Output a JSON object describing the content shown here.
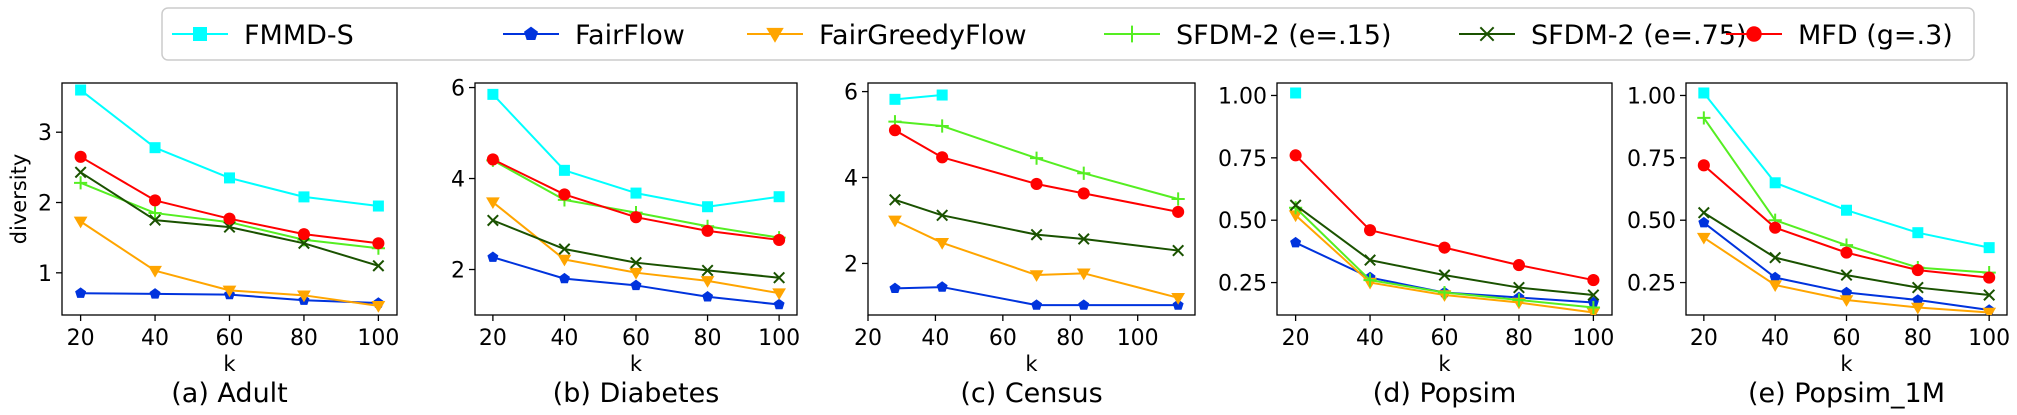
{
  "legend": {
    "placement": "top-center",
    "entries": [
      {
        "name": "FMMD-S",
        "color": "#00FFFF",
        "marker": "square"
      },
      {
        "name": "FairFlow",
        "color": "#0033DD",
        "marker": "pentagon"
      },
      {
        "name": "FairGreedyFlow",
        "color": "#FFA500",
        "marker": "triangle-down"
      },
      {
        "name": "SFDM-2 (e=.15)",
        "color": "#55EE22",
        "marker": "plus"
      },
      {
        "name": "SFDM-2 (e=.75)",
        "color": "#1A5200",
        "marker": "x"
      },
      {
        "name": "MFD (g=.3)",
        "color": "#FF0000",
        "marker": "circle"
      }
    ]
  },
  "chart_data": [
    {
      "type": "line",
      "caption": "(a) Adult",
      "xlabel": "k",
      "ylabel": "diversity",
      "xlim": [
        15,
        105
      ],
      "ylim": [
        0.4,
        3.7
      ],
      "xticks": [
        20,
        40,
        60,
        80,
        100
      ],
      "yticks": [
        1,
        2,
        3
      ],
      "grid": false,
      "series": [
        {
          "name": "FMMD-S",
          "x": [
            20,
            40,
            60,
            80,
            100
          ],
          "y": [
            3.6,
            2.78,
            2.35,
            2.08,
            1.95
          ]
        },
        {
          "name": "FairFlow",
          "x": [
            20,
            40,
            60,
            80,
            100
          ],
          "y": [
            0.71,
            0.7,
            0.69,
            0.61,
            0.57
          ]
        },
        {
          "name": "FairGreedyFlow",
          "x": [
            20,
            40,
            60,
            80,
            100
          ],
          "y": [
            1.73,
            1.03,
            0.75,
            0.68,
            0.53
          ]
        },
        {
          "name": "SFDM-2 (e=.15)",
          "x": [
            20,
            40,
            60,
            80,
            100
          ],
          "y": [
            2.28,
            1.85,
            1.72,
            1.47,
            1.35
          ]
        },
        {
          "name": "SFDM-2 (e=.75)",
          "x": [
            20,
            40,
            60,
            80,
            100
          ],
          "y": [
            2.43,
            1.75,
            1.65,
            1.42,
            1.1
          ]
        },
        {
          "name": "MFD (g=.3)",
          "x": [
            20,
            40,
            60,
            80,
            100
          ],
          "y": [
            2.65,
            2.03,
            1.77,
            1.55,
            1.42
          ]
        }
      ]
    },
    {
      "type": "line",
      "caption": "(b) Diabetes",
      "xlabel": "k",
      "ylabel": "",
      "xlim": [
        15,
        105
      ],
      "ylim": [
        1.0,
        6.1
      ],
      "xticks": [
        20,
        40,
        60,
        80,
        100
      ],
      "yticks": [
        2,
        4,
        6
      ],
      "grid": false,
      "series": [
        {
          "name": "FMMD-S",
          "x": [
            20,
            40,
            60,
            80,
            100
          ],
          "y": [
            5.85,
            4.18,
            3.68,
            3.38,
            3.6
          ]
        },
        {
          "name": "FairFlow",
          "x": [
            20,
            40,
            60,
            80,
            100
          ],
          "y": [
            2.27,
            1.8,
            1.65,
            1.4,
            1.23
          ]
        },
        {
          "name": "FairGreedyFlow",
          "x": [
            20,
            40,
            60,
            80,
            100
          ],
          "y": [
            3.48,
            2.22,
            1.93,
            1.75,
            1.48
          ]
        },
        {
          "name": "SFDM-2 (e=.15)",
          "x": [
            20,
            40,
            60,
            80,
            100
          ],
          "y": [
            4.4,
            3.53,
            3.25,
            2.95,
            2.7
          ]
        },
        {
          "name": "SFDM-2 (e=.75)",
          "x": [
            20,
            40,
            60,
            80,
            100
          ],
          "y": [
            3.08,
            2.45,
            2.15,
            1.98,
            1.82
          ]
        },
        {
          "name": "MFD (g=.3)",
          "x": [
            20,
            40,
            60,
            80,
            100
          ],
          "y": [
            4.42,
            3.65,
            3.15,
            2.85,
            2.65
          ]
        }
      ]
    },
    {
      "type": "line",
      "caption": "(c) Census",
      "xlabel": "k",
      "ylabel": "",
      "xlim": [
        20,
        117
      ],
      "ylim": [
        0.8,
        6.2
      ],
      "xticks": [
        20,
        40,
        60,
        80,
        100
      ],
      "yticks": [
        2,
        4,
        6
      ],
      "grid": false,
      "series": [
        {
          "name": "FMMD-S",
          "x": [
            28,
            42
          ],
          "y": [
            5.82,
            5.92
          ]
        },
        {
          "name": "FairFlow",
          "x": [
            28,
            42,
            70,
            84,
            112
          ],
          "y": [
            1.42,
            1.45,
            1.03,
            1.03,
            1.03
          ]
        },
        {
          "name": "FairGreedyFlow",
          "x": [
            28,
            42,
            70,
            84,
            112
          ],
          "y": [
            3.0,
            2.48,
            1.73,
            1.77,
            1.2
          ]
        },
        {
          "name": "SFDM-2 (e=.15)",
          "x": [
            28,
            42,
            70,
            84,
            112
          ],
          "y": [
            5.3,
            5.2,
            4.45,
            4.1,
            3.5
          ]
        },
        {
          "name": "SFDM-2 (e=.75)",
          "x": [
            28,
            42,
            70,
            84,
            112
          ],
          "y": [
            3.48,
            3.12,
            2.67,
            2.57,
            2.3
          ]
        },
        {
          "name": "MFD (g=.3)",
          "x": [
            28,
            42,
            70,
            84,
            112
          ],
          "y": [
            5.1,
            4.47,
            3.85,
            3.63,
            3.2
          ]
        }
      ]
    },
    {
      "type": "line",
      "caption": "(d) Popsim",
      "xlabel": "k",
      "ylabel": "",
      "xlim": [
        15,
        105
      ],
      "ylim": [
        0.12,
        1.05
      ],
      "xticks": [
        20,
        40,
        60,
        80,
        100
      ],
      "yticks": [
        0.25,
        0.5,
        0.75,
        1.0
      ],
      "ytick_labels": [
        "0.25",
        "0.50",
        "0.75",
        "1.00"
      ],
      "grid": false,
      "series": [
        {
          "name": "FMMD-S",
          "x": [
            20
          ],
          "y": [
            1.01
          ]
        },
        {
          "name": "FairFlow",
          "x": [
            20,
            40,
            60,
            80,
            100
          ],
          "y": [
            0.41,
            0.27,
            0.21,
            0.19,
            0.17
          ]
        },
        {
          "name": "FairGreedyFlow",
          "x": [
            20,
            40,
            60,
            80,
            100
          ],
          "y": [
            0.52,
            0.25,
            0.2,
            0.17,
            0.13
          ]
        },
        {
          "name": "SFDM-2 (e=.15)",
          "x": [
            20,
            40,
            60,
            80,
            100
          ],
          "y": [
            0.55,
            0.26,
            0.21,
            0.18,
            0.15
          ]
        },
        {
          "name": "SFDM-2 (e=.75)",
          "x": [
            20,
            40,
            60,
            80,
            100
          ],
          "y": [
            0.56,
            0.34,
            0.28,
            0.23,
            0.2
          ]
        },
        {
          "name": "MFD (g=.3)",
          "x": [
            20,
            40,
            60,
            80,
            100
          ],
          "y": [
            0.76,
            0.46,
            0.39,
            0.32,
            0.26
          ]
        }
      ]
    },
    {
      "type": "line",
      "caption": "(e) Popsim_1M",
      "xlabel": "k",
      "ylabel": "",
      "xlim": [
        15,
        105
      ],
      "ylim": [
        0.12,
        1.05
      ],
      "xticks": [
        20,
        40,
        60,
        80,
        100
      ],
      "yticks": [
        0.25,
        0.5,
        0.75,
        1.0
      ],
      "ytick_labels": [
        "0.25",
        "0.50",
        "0.75",
        "1.00"
      ],
      "grid": false,
      "series": [
        {
          "name": "FMMD-S",
          "x": [
            20,
            40,
            60,
            80,
            100
          ],
          "y": [
            1.01,
            0.65,
            0.54,
            0.45,
            0.39
          ]
        },
        {
          "name": "FairFlow",
          "x": [
            20,
            40,
            60,
            80,
            100
          ],
          "y": [
            0.49,
            0.27,
            0.21,
            0.18,
            0.14
          ]
        },
        {
          "name": "FairGreedyFlow",
          "x": [
            20,
            40,
            60,
            80,
            100
          ],
          "y": [
            0.43,
            0.24,
            0.18,
            0.15,
            0.13
          ]
        },
        {
          "name": "SFDM-2 (e=.15)",
          "x": [
            20,
            40,
            60,
            80,
            100
          ],
          "y": [
            0.91,
            0.5,
            0.4,
            0.31,
            0.29
          ]
        },
        {
          "name": "SFDM-2 (e=.75)",
          "x": [
            20,
            40,
            60,
            80,
            100
          ],
          "y": [
            0.53,
            0.35,
            0.28,
            0.23,
            0.2
          ]
        },
        {
          "name": "MFD (g=.3)",
          "x": [
            20,
            40,
            60,
            80,
            100
          ],
          "y": [
            0.72,
            0.47,
            0.37,
            0.3,
            0.27
          ]
        }
      ]
    }
  ]
}
